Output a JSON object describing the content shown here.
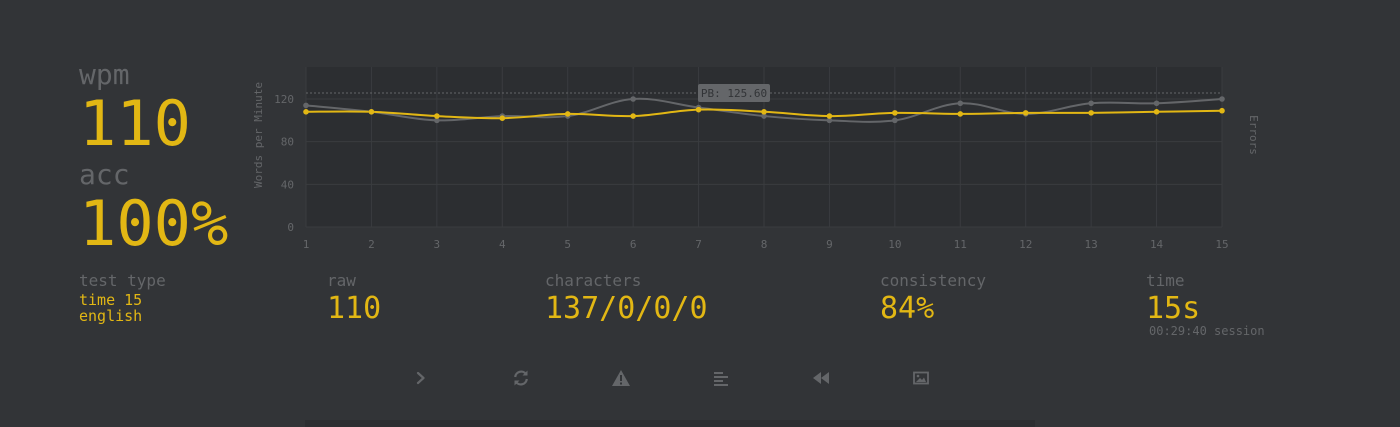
{
  "stats": {
    "wpm_label": "wpm",
    "wpm_value": "110",
    "acc_label": "acc",
    "acc_value": "100%",
    "test_type_label": "test type",
    "test_type_mode": "time 15",
    "test_type_language": "english",
    "raw_label": "raw",
    "raw_value": "110",
    "characters_label": "characters",
    "characters_value": "137/0/0/0",
    "consistency_label": "consistency",
    "consistency_value": "84%",
    "time_label": "time",
    "time_value": "15s",
    "session_time": "00:29:40 session"
  },
  "buttons": [
    {
      "name": "next-test-button",
      "icon": "chevron-right-icon"
    },
    {
      "name": "repeat-test-button",
      "icon": "refresh-icon"
    },
    {
      "name": "practice-words-button",
      "icon": "warning-icon"
    },
    {
      "name": "toggle-word-history-button",
      "icon": "align-left-icon"
    },
    {
      "name": "watch-replay-button",
      "icon": "backward-icon"
    },
    {
      "name": "save-screenshot-button",
      "icon": "image-icon"
    }
  ],
  "colors": {
    "background": "#323437",
    "plot_bg": "#2c2e31",
    "accent": "#e2b714",
    "muted": "#646669"
  },
  "chart_data": {
    "type": "line",
    "x": [
      1,
      2,
      3,
      4,
      5,
      6,
      7,
      8,
      9,
      10,
      11,
      12,
      13,
      14,
      15
    ],
    "series": [
      {
        "key": "wpm",
        "values": [
          108,
          108,
          104,
          102,
          106,
          104,
          110,
          108,
          104,
          107,
          106,
          107,
          107,
          108,
          109
        ]
      },
      {
        "key": "raw",
        "values": [
          114,
          108,
          100,
          104,
          104,
          120,
          112,
          104,
          100,
          100,
          116,
          106,
          116,
          116,
          120
        ]
      }
    ],
    "ylabel": "Words per Minute",
    "y2label": "Errors",
    "yticks": [
      0,
      40,
      80,
      120
    ],
    "xticks": [
      "1",
      "2",
      "3",
      "4",
      "5",
      "6",
      "7",
      "8",
      "9",
      "10",
      "11",
      "12",
      "13",
      "14",
      "15"
    ],
    "ylim": [
      0,
      150
    ],
    "pb_value": 125.6,
    "pb_label": "PB: 125.60"
  }
}
